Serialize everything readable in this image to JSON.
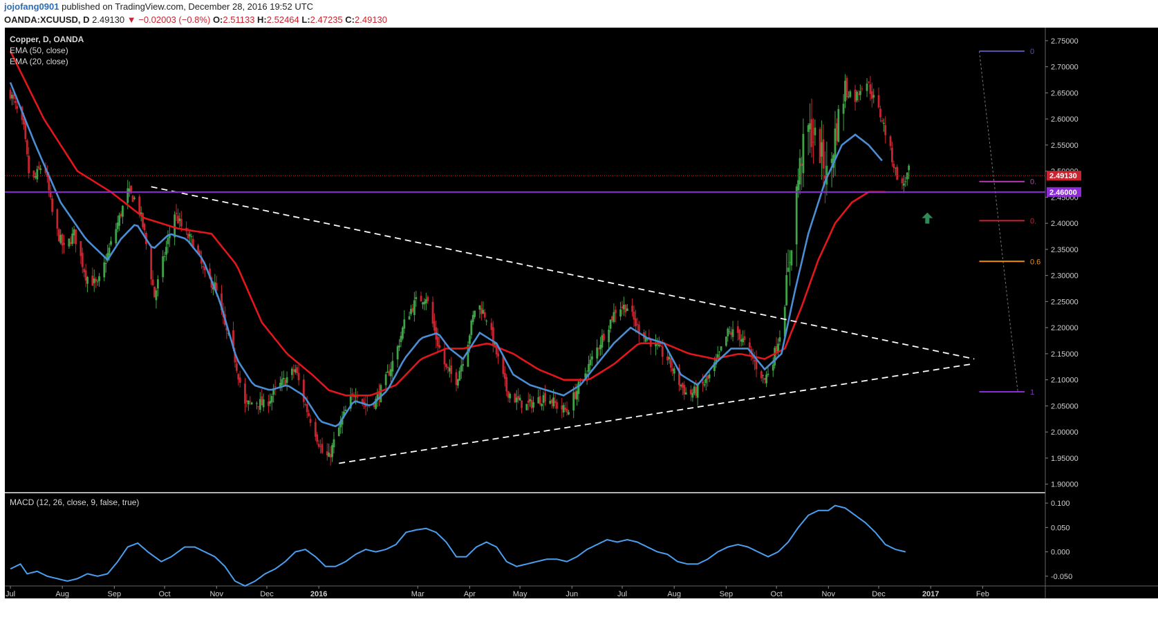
{
  "header": {
    "user": "jojofang0901",
    "published": "published on TradingView.com, December 28, 2016 19:52 UTC",
    "symbol": "OANDA:XCUUSD, D",
    "last": "2.49130",
    "change": "▼ −0.02003 (−0.8%)",
    "o_label": "O:",
    "o": "2.51133",
    "h_label": "H:",
    "h": "2.52464",
    "l_label": "L:",
    "l": "2.47235",
    "c_label": "C:",
    "c": "2.49130"
  },
  "legend": {
    "title": "Copper, D, OANDA",
    "ema50": "EMA (50, close)",
    "ema20": "EMA (20, close)",
    "macd": "MACD (12, 26, close, 9, false, true)"
  },
  "colors": {
    "background": "#000000",
    "up": "#3fa447",
    "down": "#c8242f",
    "ema50": "#e3161b",
    "ema20": "#4a8fd6",
    "macd": "#4a9ff0",
    "support": "#8e2bd9",
    "price_line": "#c8242f",
    "trend": "#ffffff",
    "arrow": "#2e8b57"
  },
  "chart_data": {
    "type": "candlestick",
    "y_ticks": [
      "2.75000",
      "2.70000",
      "2.65000",
      "2.60000",
      "2.55000",
      "2.50000",
      "2.45000",
      "2.40000",
      "2.35000",
      "2.30000",
      "2.25000",
      "2.20000",
      "2.15000",
      "2.10000",
      "2.05000",
      "2.00000",
      "1.95000",
      "1.90000"
    ],
    "ylim": [
      1.885,
      2.775
    ],
    "x_ticks": [
      "Jul",
      "Aug",
      "Sep",
      "Oct",
      "Nov",
      "Dec",
      "2016",
      "Mar",
      "Apr",
      "May",
      "Jun",
      "Jul",
      "Aug",
      "Sep",
      "Oct",
      "Nov",
      "Dec",
      "2017",
      "Feb"
    ],
    "x_tick_days": [
      0,
      31,
      62,
      92,
      123,
      153,
      184,
      243,
      274,
      304,
      335,
      365,
      396,
      427,
      457,
      488,
      518,
      549,
      580
    ],
    "last_day": 548,
    "price_label": "2.49130",
    "price_value": 2.4913,
    "support_label": "2.46000",
    "support_value": 2.46,
    "ohlc_anchors": [
      [
        0,
        2.65
      ],
      [
        8,
        2.58
      ],
      [
        12,
        2.47
      ],
      [
        20,
        2.52
      ],
      [
        26,
        2.4
      ],
      [
        32,
        2.35
      ],
      [
        38,
        2.38
      ],
      [
        45,
        2.3
      ],
      [
        52,
        2.28
      ],
      [
        58,
        2.34
      ],
      [
        64,
        2.4
      ],
      [
        70,
        2.46
      ],
      [
        76,
        2.44
      ],
      [
        80,
        2.38
      ],
      [
        86,
        2.26
      ],
      [
        92,
        2.34
      ],
      [
        98,
        2.42
      ],
      [
        104,
        2.38
      ],
      [
        110,
        2.36
      ],
      [
        116,
        2.3
      ],
      [
        122,
        2.28
      ],
      [
        128,
        2.2
      ],
      [
        134,
        2.14
      ],
      [
        140,
        2.05
      ],
      [
        146,
        2.06
      ],
      [
        152,
        2.05
      ],
      [
        158,
        2.08
      ],
      [
        164,
        2.1
      ],
      [
        170,
        2.12
      ],
      [
        176,
        2.05
      ],
      [
        182,
        2.0
      ],
      [
        186,
        1.96
      ],
      [
        190,
        1.95
      ],
      [
        194,
        1.99
      ],
      [
        200,
        2.04
      ],
      [
        206,
        2.08
      ],
      [
        212,
        2.05
      ],
      [
        218,
        2.06
      ],
      [
        224,
        2.1
      ],
      [
        230,
        2.15
      ],
      [
        236,
        2.22
      ],
      [
        242,
        2.25
      ],
      [
        248,
        2.26
      ],
      [
        254,
        2.18
      ],
      [
        260,
        2.12
      ],
      [
        266,
        2.1
      ],
      [
        272,
        2.16
      ],
      [
        278,
        2.25
      ],
      [
        284,
        2.22
      ],
      [
        290,
        2.15
      ],
      [
        296,
        2.08
      ],
      [
        302,
        2.06
      ],
      [
        308,
        2.05
      ],
      [
        314,
        2.06
      ],
      [
        320,
        2.07
      ],
      [
        326,
        2.05
      ],
      [
        332,
        2.04
      ],
      [
        338,
        2.08
      ],
      [
        344,
        2.12
      ],
      [
        350,
        2.16
      ],
      [
        356,
        2.2
      ],
      [
        362,
        2.24
      ],
      [
        368,
        2.24
      ],
      [
        374,
        2.2
      ],
      [
        380,
        2.18
      ],
      [
        386,
        2.16
      ],
      [
        392,
        2.14
      ],
      [
        398,
        2.1
      ],
      [
        404,
        2.07
      ],
      [
        410,
        2.08
      ],
      [
        416,
        2.1
      ],
      [
        422,
        2.14
      ],
      [
        428,
        2.19
      ],
      [
        434,
        2.19
      ],
      [
        440,
        2.16
      ],
      [
        446,
        2.12
      ],
      [
        450,
        2.1
      ],
      [
        455,
        2.14
      ],
      [
        460,
        2.2
      ],
      [
        464,
        2.3
      ],
      [
        468,
        2.44
      ],
      [
        472,
        2.53
      ],
      [
        476,
        2.58
      ],
      [
        482,
        2.55
      ],
      [
        488,
        2.48
      ],
      [
        492,
        2.57
      ],
      [
        498,
        2.66
      ],
      [
        504,
        2.64
      ],
      [
        510,
        2.68
      ],
      [
        516,
        2.63
      ],
      [
        520,
        2.6
      ],
      [
        524,
        2.55
      ],
      [
        528,
        2.5
      ],
      [
        532,
        2.47
      ],
      [
        536,
        2.5
      ]
    ],
    "ema50_anchors": [
      [
        0,
        2.73
      ],
      [
        20,
        2.6
      ],
      [
        40,
        2.5
      ],
      [
        60,
        2.46
      ],
      [
        80,
        2.41
      ],
      [
        100,
        2.39
      ],
      [
        120,
        2.38
      ],
      [
        135,
        2.32
      ],
      [
        150,
        2.21
      ],
      [
        165,
        2.15
      ],
      [
        180,
        2.11
      ],
      [
        190,
        2.08
      ],
      [
        200,
        2.07
      ],
      [
        215,
        2.07
      ],
      [
        230,
        2.09
      ],
      [
        245,
        2.14
      ],
      [
        260,
        2.16
      ],
      [
        270,
        2.16
      ],
      [
        285,
        2.17
      ],
      [
        300,
        2.15
      ],
      [
        315,
        2.12
      ],
      [
        330,
        2.1
      ],
      [
        345,
        2.1
      ],
      [
        360,
        2.13
      ],
      [
        375,
        2.17
      ],
      [
        390,
        2.17
      ],
      [
        405,
        2.15
      ],
      [
        420,
        2.14
      ],
      [
        435,
        2.15
      ],
      [
        450,
        2.14
      ],
      [
        462,
        2.16
      ],
      [
        472,
        2.24
      ],
      [
        482,
        2.33
      ],
      [
        492,
        2.4
      ],
      [
        502,
        2.44
      ],
      [
        512,
        2.46
      ],
      [
        522,
        2.46
      ]
    ],
    "ema20_anchors": [
      [
        0,
        2.67
      ],
      [
        15,
        2.55
      ],
      [
        30,
        2.44
      ],
      [
        45,
        2.37
      ],
      [
        58,
        2.33
      ],
      [
        66,
        2.37
      ],
      [
        75,
        2.4
      ],
      [
        85,
        2.35
      ],
      [
        95,
        2.38
      ],
      [
        105,
        2.37
      ],
      [
        115,
        2.33
      ],
      [
        125,
        2.25
      ],
      [
        135,
        2.14
      ],
      [
        145,
        2.09
      ],
      [
        155,
        2.08
      ],
      [
        165,
        2.09
      ],
      [
        175,
        2.07
      ],
      [
        185,
        2.02
      ],
      [
        195,
        2.01
      ],
      [
        205,
        2.06
      ],
      [
        215,
        2.05
      ],
      [
        225,
        2.08
      ],
      [
        235,
        2.14
      ],
      [
        245,
        2.18
      ],
      [
        255,
        2.19
      ],
      [
        262,
        2.16
      ],
      [
        270,
        2.14
      ],
      [
        280,
        2.19
      ],
      [
        290,
        2.17
      ],
      [
        300,
        2.11
      ],
      [
        310,
        2.09
      ],
      [
        320,
        2.08
      ],
      [
        330,
        2.07
      ],
      [
        340,
        2.09
      ],
      [
        350,
        2.13
      ],
      [
        360,
        2.17
      ],
      [
        370,
        2.2
      ],
      [
        380,
        2.18
      ],
      [
        390,
        2.17
      ],
      [
        400,
        2.11
      ],
      [
        410,
        2.09
      ],
      [
        420,
        2.13
      ],
      [
        430,
        2.16
      ],
      [
        440,
        2.16
      ],
      [
        450,
        2.12
      ],
      [
        460,
        2.15
      ],
      [
        468,
        2.27
      ],
      [
        476,
        2.38
      ],
      [
        486,
        2.48
      ],
      [
        496,
        2.55
      ],
      [
        504,
        2.57
      ],
      [
        512,
        2.55
      ],
      [
        520,
        2.52
      ]
    ],
    "trendlines": [
      [
        [
          84,
          2.47
        ],
        [
          575,
          2.14
        ]
      ],
      [
        [
          196,
          1.94
        ],
        [
          573,
          2.13
        ]
      ]
    ],
    "fib_levels": [
      {
        "label": "0",
        "value": 2.73,
        "color": "#5b4fb3"
      },
      {
        "label": "0.",
        "value": 2.48,
        "color": "#b23fb3"
      },
      {
        "label": "0.",
        "value": 2.405,
        "color": "#c8242f"
      },
      {
        "label": "0.6",
        "value": 2.327,
        "color": "#f0900c"
      },
      {
        "label": "1",
        "value": 2.077,
        "color": "#8e2bd9"
      }
    ],
    "macd": {
      "y_ticks": [
        "0.100",
        "0.050",
        "0.000",
        "-0.050"
      ],
      "ylim": [
        -0.07,
        0.12
      ],
      "anchors": [
        [
          0,
          -0.035
        ],
        [
          6,
          -0.025
        ],
        [
          10,
          -0.045
        ],
        [
          16,
          -0.04
        ],
        [
          22,
          -0.05
        ],
        [
          28,
          -0.055
        ],
        [
          34,
          -0.06
        ],
        [
          40,
          -0.055
        ],
        [
          46,
          -0.045
        ],
        [
          52,
          -0.05
        ],
        [
          58,
          -0.045
        ],
        [
          64,
          -0.02
        ],
        [
          70,
          0.01
        ],
        [
          76,
          0.018
        ],
        [
          82,
          0.0
        ],
        [
          90,
          -0.02
        ],
        [
          96,
          -0.01
        ],
        [
          104,
          0.01
        ],
        [
          110,
          0.01
        ],
        [
          116,
          0.0
        ],
        [
          122,
          -0.01
        ],
        [
          128,
          -0.03
        ],
        [
          134,
          -0.06
        ],
        [
          140,
          -0.07
        ],
        [
          146,
          -0.06
        ],
        [
          152,
          -0.045
        ],
        [
          158,
          -0.035
        ],
        [
          164,
          -0.02
        ],
        [
          170,
          0.0
        ],
        [
          176,
          0.005
        ],
        [
          182,
          -0.01
        ],
        [
          188,
          -0.03
        ],
        [
          194,
          -0.03
        ],
        [
          200,
          -0.02
        ],
        [
          206,
          -0.005
        ],
        [
          212,
          0.005
        ],
        [
          218,
          0.0
        ],
        [
          224,
          0.005
        ],
        [
          230,
          0.015
        ],
        [
          236,
          0.04
        ],
        [
          242,
          0.045
        ],
        [
          248,
          0.048
        ],
        [
          254,
          0.04
        ],
        [
          260,
          0.02
        ],
        [
          266,
          -0.01
        ],
        [
          272,
          -0.01
        ],
        [
          278,
          0.01
        ],
        [
          284,
          0.02
        ],
        [
          290,
          0.01
        ],
        [
          296,
          -0.02
        ],
        [
          302,
          -0.03
        ],
        [
          308,
          -0.025
        ],
        [
          314,
          -0.02
        ],
        [
          320,
          -0.015
        ],
        [
          326,
          -0.015
        ],
        [
          332,
          -0.02
        ],
        [
          338,
          -0.01
        ],
        [
          344,
          0.005
        ],
        [
          350,
          0.015
        ],
        [
          356,
          0.025
        ],
        [
          362,
          0.02
        ],
        [
          368,
          0.025
        ],
        [
          374,
          0.02
        ],
        [
          380,
          0.01
        ],
        [
          386,
          0.0
        ],
        [
          392,
          -0.005
        ],
        [
          398,
          -0.02
        ],
        [
          404,
          -0.025
        ],
        [
          410,
          -0.025
        ],
        [
          416,
          -0.015
        ],
        [
          422,
          0.0
        ],
        [
          428,
          0.01
        ],
        [
          434,
          0.015
        ],
        [
          440,
          0.01
        ],
        [
          446,
          0.0
        ],
        [
          452,
          -0.01
        ],
        [
          458,
          0.0
        ],
        [
          464,
          0.02
        ],
        [
          470,
          0.05
        ],
        [
          476,
          0.075
        ],
        [
          482,
          0.085
        ],
        [
          488,
          0.085
        ],
        [
          492,
          0.095
        ],
        [
          498,
          0.09
        ],
        [
          504,
          0.075
        ],
        [
          510,
          0.06
        ],
        [
          516,
          0.04
        ],
        [
          522,
          0.015
        ],
        [
          528,
          0.005
        ],
        [
          534,
          0.0
        ]
      ]
    }
  }
}
